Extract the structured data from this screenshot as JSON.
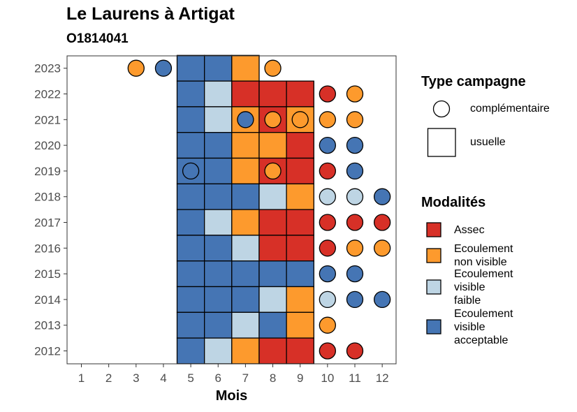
{
  "chart_data": {
    "type": "heatmap",
    "title": "Le Laurens à Artigat",
    "subtitle": "O1814041",
    "xlabel": "Mois",
    "ylabel": "",
    "x_ticks": [
      "1",
      "2",
      "3",
      "4",
      "5",
      "6",
      "7",
      "8",
      "9",
      "10",
      "11",
      "12"
    ],
    "y_ticks": [
      "2012",
      "2013",
      "2014",
      "2015",
      "2016",
      "2017",
      "2018",
      "2019",
      "2020",
      "2021",
      "2022",
      "2023"
    ],
    "grid": false,
    "legend_position": "right",
    "colors": {
      "Assec": "#d73027",
      "Ecoulement non visible": "#fd9a2d",
      "Ecoulement visible faible": "#bed5e4",
      "Ecoulement visible acceptable": "#4575b4"
    },
    "legend": {
      "type_title": "Type campagne",
      "type_items": [
        {
          "shape": "circle",
          "label": "complémentaire"
        },
        {
          "shape": "square",
          "label": "usuelle"
        }
      ],
      "mod_title": "Modalités",
      "mod_items": [
        {
          "key": "Assec",
          "label_lines": [
            "Assec"
          ]
        },
        {
          "key": "Ecoulement non visible",
          "label_lines": [
            "Ecoulement",
            "non visible"
          ]
        },
        {
          "key": "Ecoulement visible faible",
          "label_lines": [
            "Ecoulement",
            "visible",
            "faible"
          ]
        },
        {
          "key": "Ecoulement visible acceptable",
          "label_lines": [
            "Ecoulement",
            "visible",
            "acceptable"
          ]
        }
      ]
    },
    "usuelle": [
      {
        "year": 2023,
        "months": {
          "5": "Ecoulement visible acceptable",
          "6": "Ecoulement visible acceptable",
          "7": "Ecoulement non visible"
        }
      },
      {
        "year": 2022,
        "months": {
          "5": "Ecoulement visible acceptable",
          "6": "Ecoulement visible faible",
          "7": "Assec",
          "8": "Assec",
          "9": "Assec"
        }
      },
      {
        "year": 2021,
        "months": {
          "5": "Ecoulement visible acceptable",
          "6": "Ecoulement visible faible",
          "7": "Ecoulement non visible",
          "8": "Assec",
          "9": "Ecoulement non visible"
        }
      },
      {
        "year": 2020,
        "months": {
          "5": "Ecoulement visible acceptable",
          "6": "Ecoulement visible acceptable",
          "7": "Ecoulement non visible",
          "8": "Ecoulement non visible",
          "9": "Assec"
        }
      },
      {
        "year": 2019,
        "months": {
          "5": "Ecoulement visible acceptable",
          "6": "Ecoulement visible acceptable",
          "7": "Ecoulement non visible",
          "8": "Assec",
          "9": "Assec"
        }
      },
      {
        "year": 2018,
        "months": {
          "5": "Ecoulement visible acceptable",
          "6": "Ecoulement visible acceptable",
          "7": "Ecoulement visible acceptable",
          "8": "Ecoulement visible faible",
          "9": "Ecoulement non visible"
        }
      },
      {
        "year": 2017,
        "months": {
          "5": "Ecoulement visible acceptable",
          "6": "Ecoulement visible faible",
          "7": "Ecoulement non visible",
          "8": "Assec",
          "9": "Assec"
        }
      },
      {
        "year": 2016,
        "months": {
          "5": "Ecoulement visible acceptable",
          "6": "Ecoulement visible acceptable",
          "7": "Ecoulement visible faible",
          "8": "Assec",
          "9": "Assec"
        }
      },
      {
        "year": 2015,
        "months": {
          "5": "Ecoulement visible acceptable",
          "6": "Ecoulement visible acceptable",
          "7": "Ecoulement visible acceptable",
          "8": "Ecoulement visible acceptable",
          "9": "Ecoulement visible acceptable"
        }
      },
      {
        "year": 2014,
        "months": {
          "5": "Ecoulement visible acceptable",
          "6": "Ecoulement visible acceptable",
          "7": "Ecoulement visible acceptable",
          "8": "Ecoulement visible faible",
          "9": "Ecoulement non visible"
        }
      },
      {
        "year": 2013,
        "months": {
          "5": "Ecoulement visible acceptable",
          "6": "Ecoulement visible acceptable",
          "7": "Ecoulement visible faible",
          "8": "Ecoulement visible acceptable",
          "9": "Ecoulement non visible"
        }
      },
      {
        "year": 2012,
        "months": {
          "5": "Ecoulement visible acceptable",
          "6": "Ecoulement visible faible",
          "7": "Ecoulement non visible",
          "8": "Assec",
          "9": "Assec"
        }
      }
    ],
    "complementaire": [
      {
        "year": 2023,
        "months": {
          "3": "Ecoulement non visible",
          "4": "Ecoulement visible acceptable",
          "8": "Ecoulement non visible"
        }
      },
      {
        "year": 2022,
        "months": {
          "10": "Assec",
          "11": "Ecoulement non visible"
        }
      },
      {
        "year": 2021,
        "months": {
          "7": "Ecoulement visible acceptable",
          "8": "Ecoulement non visible",
          "9": "Ecoulement non visible",
          "10": "Ecoulement non visible",
          "11": "Ecoulement non visible"
        }
      },
      {
        "year": 2020,
        "months": {
          "10": "Ecoulement visible acceptable",
          "11": "Ecoulement visible acceptable"
        }
      },
      {
        "year": 2019,
        "months": {
          "5": "Ecoulement visible acceptable",
          "8": "Ecoulement non visible",
          "10": "Assec",
          "11": "Ecoulement visible acceptable"
        }
      },
      {
        "year": 2018,
        "months": {
          "10": "Ecoulement visible faible",
          "11": "Ecoulement visible faible",
          "12": "Ecoulement visible acceptable"
        }
      },
      {
        "year": 2017,
        "months": {
          "10": "Assec",
          "11": "Assec",
          "12": "Assec"
        }
      },
      {
        "year": 2016,
        "months": {
          "10": "Assec",
          "11": "Ecoulement non visible",
          "12": "Ecoulement non visible"
        }
      },
      {
        "year": 2015,
        "months": {
          "10": "Ecoulement visible acceptable",
          "11": "Ecoulement visible acceptable"
        }
      },
      {
        "year": 2014,
        "months": {
          "10": "Ecoulement visible faible",
          "11": "Ecoulement visible acceptable",
          "12": "Ecoulement visible acceptable"
        }
      },
      {
        "year": 2013,
        "months": {
          "10": "Ecoulement non visible"
        }
      },
      {
        "year": 2012,
        "months": {
          "10": "Assec",
          "11": "Assec"
        }
      }
    ]
  }
}
